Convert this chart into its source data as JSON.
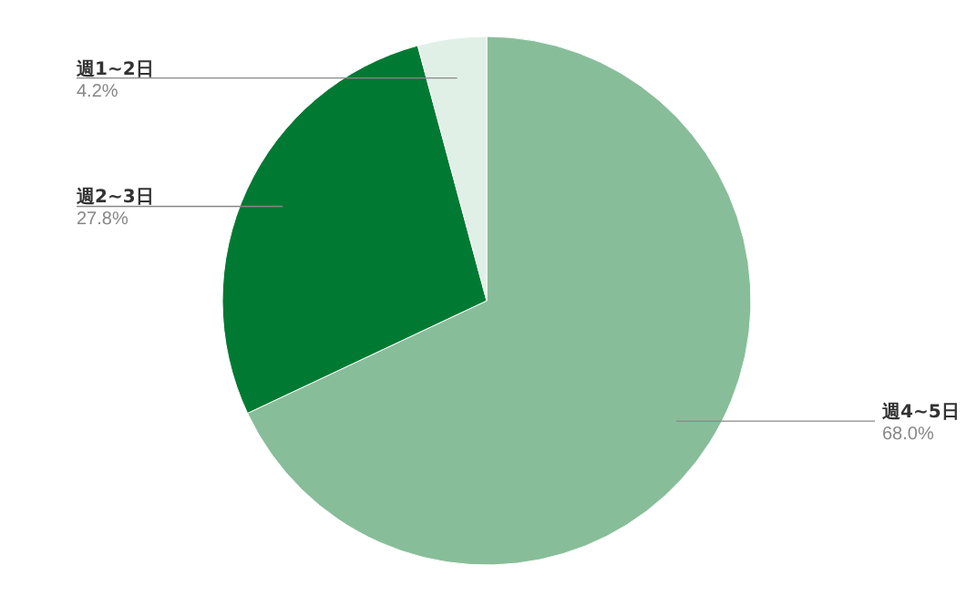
{
  "chart_data": {
    "type": "pie",
    "categories": [
      "週4~5日",
      "週2~3日",
      "週1~2日"
    ],
    "values": [
      68.0,
      27.8,
      4.2
    ],
    "colors": [
      "#88bd99",
      "#007a33",
      "#e0f0e6"
    ],
    "value_labels": [
      "68.0%",
      "27.8%",
      "4.2%"
    ]
  }
}
